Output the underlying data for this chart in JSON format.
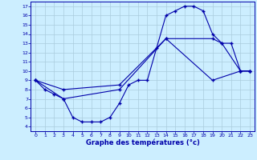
{
  "xlabel": "Graphe des températures (°c)",
  "bg_color": "#cceeff",
  "grid_color": "#aaccdd",
  "line_color": "#0000aa",
  "xlim": [
    -0.5,
    23.5
  ],
  "ylim": [
    3.5,
    17.5
  ],
  "xticks": [
    0,
    1,
    2,
    3,
    4,
    5,
    6,
    7,
    8,
    9,
    10,
    11,
    12,
    13,
    14,
    15,
    16,
    17,
    18,
    19,
    20,
    21,
    22,
    23
  ],
  "yticks": [
    4,
    5,
    6,
    7,
    8,
    9,
    10,
    11,
    12,
    13,
    14,
    15,
    16,
    17
  ],
  "line1_x": [
    0,
    1,
    2,
    3,
    4,
    5,
    6,
    7,
    8,
    9,
    10,
    11,
    12,
    13,
    14,
    15,
    16,
    17,
    18,
    19,
    20,
    21,
    22,
    23
  ],
  "line1_y": [
    9,
    8,
    7.5,
    7,
    5,
    4.5,
    4.5,
    4.5,
    5,
    6.5,
    8.5,
    9,
    9,
    12.5,
    16,
    16.5,
    17,
    17,
    16.5,
    14,
    13,
    13,
    10,
    10
  ],
  "line2_x": [
    0,
    3,
    9,
    14,
    19,
    20,
    22,
    23
  ],
  "line2_y": [
    9,
    8,
    8.5,
    13.5,
    13.5,
    13,
    10,
    10
  ],
  "line3_x": [
    0,
    3,
    9,
    14,
    19,
    22,
    23
  ],
  "line3_y": [
    9,
    7,
    8,
    13.5,
    9,
    10,
    10
  ]
}
